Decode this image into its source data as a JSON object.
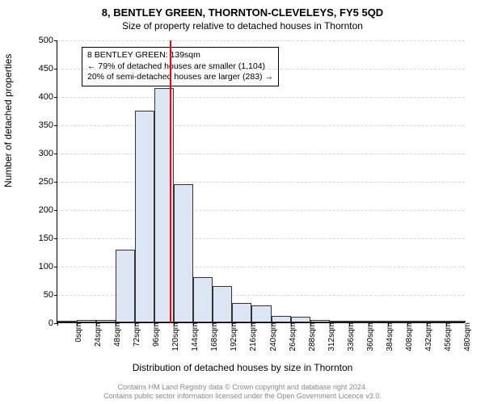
{
  "titles": {
    "main": "8, BENTLEY GREEN, THORNTON-CLEVELEYS, FY5 5QD",
    "sub": "Size of property relative to detached houses in Thornton"
  },
  "chart": {
    "type": "histogram",
    "ylim": [
      0,
      500
    ],
    "ytick_step": 50,
    "yticks": [
      0,
      50,
      100,
      150,
      200,
      250,
      300,
      350,
      400,
      450,
      500
    ],
    "y_axis_label": "Number of detached properties",
    "x_axis_label": "Distribution of detached houses by size in Thornton",
    "x_categories": [
      "0sqm",
      "24sqm",
      "48sqm",
      "72sqm",
      "96sqm",
      "120sqm",
      "144sqm",
      "168sqm",
      "192sqm",
      "216sqm",
      "240sqm",
      "264sqm",
      "288sqm",
      "312sqm",
      "336sqm",
      "360sqm",
      "384sqm",
      "408sqm",
      "432sqm",
      "456sqm",
      "480sqm"
    ],
    "values": [
      0,
      5,
      5,
      128,
      375,
      415,
      245,
      80,
      65,
      35,
      30,
      12,
      10,
      5,
      3,
      2,
      2,
      1,
      1,
      1,
      1
    ],
    "bar_fill": "#dbe5f4",
    "bar_stroke": "#333333",
    "grid_color": "#888888",
    "background": "#ffffff",
    "marker": {
      "x_index": 5.8,
      "color": "#ff0000",
      "width": 2
    }
  },
  "callout": {
    "line1": "8 BENTLEY GREEN: 139sqm",
    "line2": "← 79% of detached houses are smaller (1,104)",
    "line3": "20% of semi-detached houses are larger (283) →"
  },
  "footer": {
    "line1": "Contains HM Land Registry data © Crown copyright and database right 2024.",
    "line2": "Contains public sector information licensed under the Open Government Licence v3.0."
  }
}
